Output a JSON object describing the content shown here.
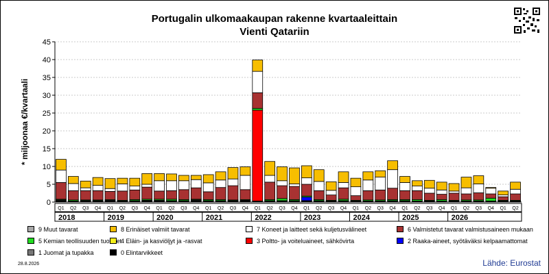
{
  "title": {
    "line1": "Portugalin ulkomaakaupan rakenne kvartaaleittain",
    "line2": "Vienti Qatariin"
  },
  "ylabel": "* miljoonaa €/kvartaali",
  "source": "Lähde: Eurostat",
  "date": "28.8.2026",
  "colors": {
    "c9": "#a8a8a8",
    "c8": "#f7be00",
    "c7": "#ffffff",
    "c6": "#a83232",
    "c5": "#22dd22",
    "c4": "#f4ef1a",
    "c3": "#ff0000",
    "c2": "#0000ff",
    "c1": "#777777",
    "c0": "#000000"
  },
  "legend": [
    {
      "key": "c9",
      "label": "9 Muut tavarat"
    },
    {
      "key": "c8",
      "label": "8 Erinäiset valmiit tavarat"
    },
    {
      "key": "c7",
      "label": "7 Koneet ja laitteet sekä kuljetusvälineet"
    },
    {
      "key": "c6",
      "label": "6 Valmistetut tavarat valmistusaineen mukaan"
    },
    {
      "key": "c5",
      "label": "5 Kemian teollisuuden tuotteet"
    },
    {
      "key": "c4",
      "label": "4 Eläin- ja kasviöljyt ja -rasvat"
    },
    {
      "key": "c3",
      "label": "3 Poltto- ja voiteluaineet, sähkövirta"
    },
    {
      "key": "c2",
      "label": "2 Raaka-aineet, syötäväksi kelpaamattomat"
    },
    {
      "key": "c1",
      "label": "1 Juomat ja tupakka"
    },
    {
      "key": "c0",
      "label": "0 Elintarvikkeet"
    }
  ],
  "chart_data": {
    "type": "bar",
    "stacked": true,
    "ylim": [
      0,
      45
    ],
    "yticks": [
      0,
      5,
      10,
      15,
      20,
      25,
      30,
      35,
      40,
      45
    ],
    "grid": true,
    "categories": [
      "Q1",
      "Q2",
      "Q3",
      "Q4",
      "Q1",
      "Q2",
      "Q3",
      "Q4",
      "Q1",
      "Q2",
      "Q3",
      "Q4",
      "Q1",
      "Q2",
      "Q3",
      "Q4",
      "Q1",
      "Q2",
      "Q3",
      "Q4",
      "Q1",
      "Q2",
      "Q3",
      "Q4",
      "Q1",
      "Q2",
      "Q3",
      "Q4",
      "Q1",
      "Q2",
      "Q3",
      "Q4",
      "Q1",
      "Q2",
      "Q3",
      "Q4",
      "Q1",
      "Q2"
    ],
    "years": [
      "2018",
      "2019",
      "2020",
      "2021",
      "2022",
      "2023",
      "2024",
      "2025",
      "2026"
    ],
    "series": [
      {
        "name": "0 Elintarvikkeet",
        "key": "c0",
        "values": [
          0.4,
          0.2,
          0.3,
          0.3,
          0.3,
          0.2,
          0.3,
          0.4,
          0.3,
          0.3,
          0.3,
          0.4,
          0.3,
          0.3,
          0.3,
          0.4,
          0.2,
          0.3,
          0.3,
          0.3,
          0.3,
          0.3,
          0.2,
          0.3,
          0.2,
          0.2,
          0.2,
          0.3,
          0.3,
          0.2,
          0.2,
          0.2,
          0.2,
          0.2,
          0.2,
          0.2,
          0.2,
          0.2
        ]
      },
      {
        "name": "1 Juomat ja tupakka",
        "key": "c1",
        "values": [
          0.2,
          0.1,
          0.1,
          0.1,
          0.2,
          0.1,
          0.1,
          0.1,
          0.2,
          0.1,
          0.1,
          0.2,
          0.1,
          0.1,
          0.1,
          0.1,
          0.1,
          0.1,
          0.1,
          0.1,
          0.1,
          0.1,
          0.1,
          0.1,
          0.1,
          0.1,
          0.1,
          0.1,
          0.1,
          0.1,
          0.1,
          0.1,
          0.1,
          0.1,
          0.1,
          0.1,
          0.1,
          0.1
        ]
      },
      {
        "name": "2 Raaka-aineet, syötäväksi kelpaamattomat",
        "key": "c2",
        "values": [
          0,
          0,
          0,
          0,
          0,
          0,
          0,
          0,
          0,
          0,
          0,
          0,
          0,
          0,
          0,
          0,
          0,
          0,
          0,
          0,
          1.0,
          0,
          0,
          0,
          0,
          0,
          0,
          0,
          0,
          0,
          0,
          0,
          0,
          0,
          0,
          0,
          0,
          0
        ]
      },
      {
        "name": "3 Poltto- ja voiteluaineet, sähkövirta",
        "key": "c3",
        "values": [
          0,
          0,
          0,
          0,
          0,
          0,
          0,
          0,
          0,
          0,
          0,
          0,
          0,
          0,
          0,
          0,
          25.5,
          0,
          0,
          0,
          0,
          0,
          0,
          0,
          0,
          0,
          0,
          0,
          0,
          0,
          0,
          0,
          0,
          0,
          0,
          0,
          0,
          0
        ]
      },
      {
        "name": "4 Eläin- ja kasviöljyt ja -rasvat",
        "key": "c4",
        "values": [
          0,
          0,
          0,
          0,
          0,
          0,
          0,
          0,
          0,
          0,
          0,
          0,
          0,
          0,
          0,
          0,
          0,
          0,
          0,
          0,
          0,
          0,
          0,
          0,
          0,
          0,
          0,
          0,
          0,
          0,
          0,
          0,
          0,
          0,
          0,
          0,
          0,
          0
        ]
      },
      {
        "name": "5 Kemian teollisuuden tuotteet",
        "key": "c5",
        "values": [
          0.2,
          0.3,
          0.2,
          0.2,
          0.2,
          0.2,
          0.3,
          0.3,
          0.3,
          0.4,
          0.3,
          0.2,
          0.3,
          0.3,
          0.2,
          0.2,
          0.5,
          0.3,
          0.6,
          0.3,
          0.3,
          0.3,
          0.2,
          0.4,
          0.2,
          0.3,
          0.3,
          0.3,
          0.3,
          0.4,
          0.2,
          0.4,
          0.2,
          0.3,
          0.3,
          0.8,
          0.2,
          0.2
        ]
      },
      {
        "name": "6 Valmistetut tavarat valmistusaineen mukaan",
        "key": "c6",
        "values": [
          4.7,
          2.6,
          2.6,
          2.6,
          2.3,
          2.6,
          2.7,
          3.4,
          2.3,
          2.4,
          2.8,
          3.2,
          2.2,
          3.4,
          4.0,
          2.8,
          4.4,
          4.9,
          3.6,
          3.7,
          3.3,
          2.5,
          1.5,
          3.2,
          1.3,
          2.6,
          2.8,
          3.2,
          2.5,
          2.5,
          2.0,
          1.5,
          2.0,
          1.7,
          2.0,
          1.2,
          1.0,
          1.8
        ]
      },
      {
        "name": "7 Koneet ja laitteet sekä kuljetusvälineet",
        "key": "c7",
        "values": [
          3.5,
          2.0,
          0.8,
          1.5,
          0.8,
          2.0,
          1.1,
          0.8,
          2.9,
          2.8,
          2.5,
          2.3,
          2.5,
          2.1,
          1.9,
          4.0,
          6.0,
          1.9,
          1.4,
          0.7,
          1.8,
          2.6,
          1.3,
          1.5,
          2.5,
          3.0,
          3.6,
          5.2,
          2.3,
          1.3,
          1.4,
          1.2,
          0.6,
          1.7,
          2.5,
          1.6,
          0.5,
          1.3
        ]
      },
      {
        "name": "8 Erinäiset valmiit tavarat",
        "key": "c8",
        "values": [
          3.0,
          2.0,
          1.9,
          2.2,
          2.8,
          1.6,
          2.2,
          3.0,
          2.0,
          1.9,
          1.5,
          1.2,
          2.3,
          2.3,
          3.2,
          2.4,
          3.2,
          3.9,
          3.9,
          4.5,
          3.4,
          3.3,
          2.4,
          3.0,
          2.4,
          2.3,
          1.8,
          2.5,
          1.7,
          1.5,
          2.2,
          2.2,
          2.1,
          3.0,
          2.3,
          0.2,
          1.1,
          2.0
        ]
      },
      {
        "name": "9 Muut tavarat",
        "key": "c9",
        "values": [
          0,
          0,
          0,
          0,
          0,
          0,
          0,
          0,
          0,
          0,
          0,
          0,
          0,
          0,
          0,
          0,
          0,
          0,
          0,
          0,
          0,
          0,
          0,
          0,
          0,
          0,
          0,
          0,
          0,
          0,
          0,
          0,
          0,
          0,
          0,
          0,
          0,
          0
        ]
      }
    ]
  }
}
